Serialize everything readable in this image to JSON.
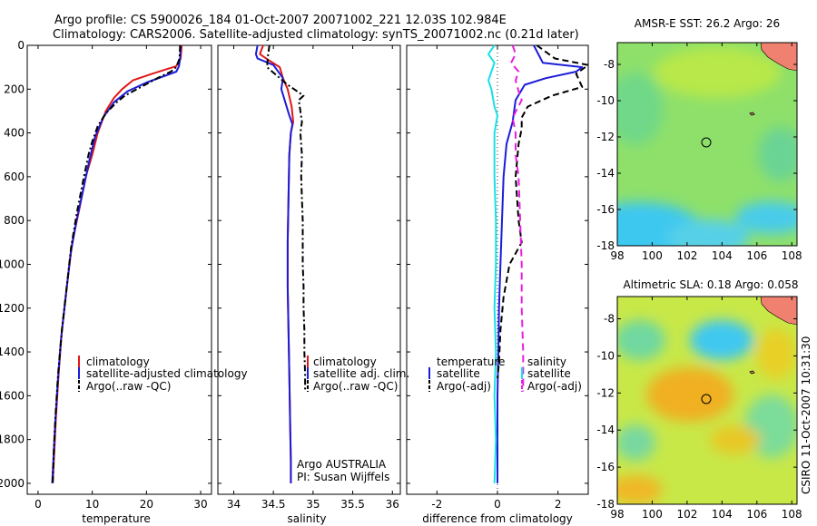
{
  "header": {
    "line1": "Argo profile: CS 5900026_184 01-Oct-2007 20071002_221 12.03S 102.984E",
    "line2": "Climatology: CARS2006. Satellite-adjusted climatology: synTS_20071002.nc (0.21d later)"
  },
  "side_text": "CSIRO 11-Oct-2007 10:31:30",
  "colors": {
    "red": "#e01818",
    "blue": "#1c1cd8",
    "black": "#000000",
    "magenta": "#e81ee0",
    "cyan": "#18e0e8"
  },
  "chart_data": [
    {
      "id": "temperature-panel",
      "type": "line",
      "xlabel": "temperature",
      "ylabel": "",
      "xlim": [
        -2,
        32
      ],
      "ylim": [
        0,
        2050
      ],
      "y_reversed": true,
      "xticks": [
        0,
        10,
        20,
        30
      ],
      "yticks": [
        0,
        200,
        400,
        600,
        800,
        1000,
        1200,
        1400,
        1600,
        1800,
        2000
      ],
      "legend": {
        "position": "lower-center",
        "entries": [
          "climatology",
          "satellite-adjusted climatology",
          "Argo(..raw -QC)"
        ]
      },
      "series": [
        {
          "name": "climatology",
          "color": "red",
          "dash": "",
          "points": [
            [
              26.5,
              0
            ],
            [
              26.3,
              60
            ],
            [
              25.5,
              95
            ],
            [
              21,
              130
            ],
            [
              17.5,
              160
            ],
            [
              15.5,
              200
            ],
            [
              14,
              240
            ],
            [
              12.5,
              300
            ],
            [
              11,
              400
            ],
            [
              10,
              500
            ],
            [
              8.8,
              600
            ],
            [
              7.6,
              750
            ],
            [
              6.3,
              900
            ],
            [
              5.3,
              1100
            ],
            [
              4.4,
              1300
            ],
            [
              3.8,
              1500
            ],
            [
              3.3,
              1700
            ],
            [
              2.9,
              1900
            ],
            [
              2.7,
              2000
            ]
          ]
        },
        {
          "name": "satellite-adjusted climatology",
          "color": "blue",
          "dash": "",
          "points": [
            [
              26.3,
              0
            ],
            [
              26.2,
              60
            ],
            [
              26,
              95
            ],
            [
              25.5,
              120
            ],
            [
              20,
              170
            ],
            [
              16.5,
              210
            ],
            [
              14,
              260
            ],
            [
              12,
              330
            ],
            [
              10.5,
              420
            ],
            [
              9.5,
              520
            ],
            [
              8.4,
              650
            ],
            [
              7.1,
              800
            ],
            [
              6,
              950
            ],
            [
              5.1,
              1150
            ],
            [
              4.2,
              1350
            ],
            [
              3.6,
              1550
            ],
            [
              3.1,
              1750
            ],
            [
              2.8,
              1900
            ],
            [
              2.6,
              2000
            ]
          ]
        },
        {
          "name": "Argo(..raw -QC)",
          "color": "black",
          "dash": "7,3,2,3",
          "points": [
            [
              26.2,
              0
            ],
            [
              26.1,
              60
            ],
            [
              25.5,
              100
            ],
            [
              24.5,
              120
            ],
            [
              22,
              150
            ],
            [
              19,
              190
            ],
            [
              16,
              230
            ],
            [
              14.5,
              260
            ],
            [
              12.5,
              310
            ],
            [
              11,
              370
            ],
            [
              10,
              440
            ],
            [
              9.3,
              500
            ],
            [
              8.3,
              620
            ],
            [
              7.2,
              760
            ],
            [
              6.1,
              920
            ],
            [
              5.3,
              1100
            ],
            [
              4.4,
              1300
            ],
            [
              3.7,
              1500
            ],
            [
              3.2,
              1700
            ],
            [
              2.9,
              1850
            ],
            [
              2.7,
              2000
            ]
          ]
        }
      ]
    },
    {
      "id": "salinity-panel",
      "type": "line",
      "xlabel": "salinity",
      "ylabel": "",
      "xlim": [
        33.8,
        36.1
      ],
      "ylim": [
        0,
        2050
      ],
      "y_reversed": true,
      "xticks": [
        34,
        34.5,
        35,
        35.5,
        36
      ],
      "xtick_labels": [
        "34",
        "34.5",
        "35",
        "35.5",
        "36"
      ],
      "legend": {
        "position": "lower-right",
        "entries": [
          "climatology",
          "satellite adj. clim.",
          "Argo(..raw -QC)"
        ]
      },
      "annotation": [
        "Argo AUSTRALIA",
        "PI: Susan Wijffels"
      ],
      "series": [
        {
          "name": "climatology",
          "color": "red",
          "dash": "",
          "points": [
            [
              34.37,
              0
            ],
            [
              34.33,
              40
            ],
            [
              34.45,
              70
            ],
            [
              34.58,
              100
            ],
            [
              34.62,
              150
            ],
            [
              34.68,
              200
            ],
            [
              34.73,
              280
            ],
            [
              34.75,
              350
            ],
            [
              34.72,
              400
            ],
            [
              34.7,
              500
            ],
            [
              34.69,
              700
            ],
            [
              34.68,
              900
            ],
            [
              34.68,
              1100
            ],
            [
              34.69,
              1300
            ],
            [
              34.7,
              1500
            ],
            [
              34.71,
              1700
            ],
            [
              34.72,
              1900
            ],
            [
              34.72,
              2000
            ]
          ]
        },
        {
          "name": "satellite adj. clim.",
          "color": "blue",
          "dash": "",
          "points": [
            [
              34.3,
              0
            ],
            [
              34.28,
              40
            ],
            [
              34.3,
              60
            ],
            [
              34.5,
              90
            ],
            [
              34.62,
              150
            ],
            [
              34.6,
              200
            ],
            [
              34.65,
              260
            ],
            [
              34.7,
              320
            ],
            [
              34.74,
              360
            ],
            [
              34.72,
              400
            ],
            [
              34.7,
              500
            ],
            [
              34.69,
              700
            ],
            [
              34.68,
              900
            ],
            [
              34.68,
              1100
            ],
            [
              34.69,
              1300
            ],
            [
              34.7,
              1500
            ],
            [
              34.71,
              1700
            ],
            [
              34.72,
              1900
            ],
            [
              34.72,
              2000
            ]
          ]
        },
        {
          "name": "Argo(..raw -QC)",
          "color": "black",
          "dash": "7,3,2,3",
          "points": [
            [
              34.45,
              0
            ],
            [
              34.43,
              50
            ],
            [
              34.42,
              100
            ],
            [
              34.55,
              140
            ],
            [
              34.68,
              180
            ],
            [
              34.8,
              210
            ],
            [
              34.88,
              230
            ],
            [
              34.82,
              250
            ],
            [
              34.84,
              300
            ],
            [
              34.86,
              350
            ],
            [
              34.84,
              400
            ],
            [
              34.86,
              500
            ],
            [
              34.85,
              600
            ],
            [
              34.86,
              700
            ],
            [
              34.87,
              800
            ],
            [
              34.87,
              900
            ],
            [
              34.87,
              1000
            ],
            [
              34.88,
              1100
            ],
            [
              34.88,
              1200
            ],
            [
              34.89,
              1300
            ],
            [
              34.89,
              1400
            ],
            [
              34.9,
              1500
            ],
            [
              34.9,
              1580
            ]
          ]
        }
      ]
    },
    {
      "id": "difference-panel",
      "type": "line",
      "xlabel": "difference from climatology",
      "ylabel": "",
      "xlim": [
        -3,
        3
      ],
      "ylim": [
        0,
        2050
      ],
      "y_reversed": true,
      "xticks": [
        -2,
        0,
        2
      ],
      "legend": {
        "position": "lower-center",
        "columns": [
          {
            "title": "temperature",
            "entries": [
              "satellite",
              "Argo(-adj)"
            ]
          },
          {
            "title": "salinity",
            "entries": [
              "satellite",
              "Argo(-adj)"
            ]
          }
        ]
      },
      "series": [
        {
          "name": "satellite",
          "group": "temperature",
          "color": "blue",
          "dash": "",
          "points": [
            [
              1.2,
              0
            ],
            [
              1.5,
              80
            ],
            [
              2.8,
              100
            ],
            [
              2.6,
              120
            ],
            [
              1.6,
              150
            ],
            [
              0.9,
              180
            ],
            [
              0.6,
              250
            ],
            [
              0.5,
              350
            ],
            [
              0.3,
              450
            ],
            [
              0.2,
              600
            ],
            [
              0.15,
              800
            ],
            [
              0.1,
              1000
            ],
            [
              0.05,
              1200
            ],
            [
              0.03,
              1400
            ],
            [
              0,
              1600
            ],
            [
              0,
              2000
            ]
          ]
        },
        {
          "name": "Argo(-adj)",
          "group": "temperature",
          "color": "black",
          "dash": "7,4",
          "points": [
            [
              1.3,
              0
            ],
            [
              1.9,
              60
            ],
            [
              3.0,
              90
            ],
            [
              2.6,
              130
            ],
            [
              2.8,
              190
            ],
            [
              1.8,
              230
            ],
            [
              1.0,
              280
            ],
            [
              0.8,
              330
            ],
            [
              0.8,
              380
            ],
            [
              0.7,
              450
            ],
            [
              0.6,
              600
            ],
            [
              0.7,
              800
            ],
            [
              0.8,
              900
            ],
            [
              0.4,
              1000
            ],
            [
              0.2,
              1150
            ],
            [
              0.1,
              1300
            ],
            [
              0.05,
              1450
            ],
            [
              0,
              1520
            ]
          ]
        },
        {
          "name": "satellite",
          "group": "salinity",
          "color": "cyan",
          "dash": "",
          "points": [
            [
              -0.1,
              0
            ],
            [
              -0.3,
              40
            ],
            [
              -0.1,
              80
            ],
            [
              -0.2,
              120
            ],
            [
              -0.3,
              160
            ],
            [
              -0.2,
              200
            ],
            [
              -0.1,
              280
            ],
            [
              0,
              320
            ],
            [
              -0.1,
              400
            ],
            [
              -0.1,
              600
            ],
            [
              -0.05,
              800
            ],
            [
              -0.05,
              1000
            ],
            [
              -0.1,
              1200
            ],
            [
              -0.05,
              1400
            ],
            [
              -0.1,
              1600
            ],
            [
              -0.05,
              1800
            ],
            [
              -0.1,
              2000
            ]
          ]
        },
        {
          "name": "Argo(-adj)",
          "group": "salinity",
          "color": "magenta",
          "dash": "8,5",
          "points": [
            [
              0.5,
              0
            ],
            [
              0.6,
              40
            ],
            [
              0.45,
              80
            ],
            [
              0.7,
              120
            ],
            [
              0.6,
              160
            ],
            [
              0.7,
              210
            ],
            [
              0.8,
              250
            ],
            [
              0.5,
              330
            ],
            [
              0.6,
              400
            ],
            [
              0.6,
              500
            ],
            [
              0.7,
              600
            ],
            [
              0.75,
              800
            ],
            [
              0.8,
              1000
            ],
            [
              0.8,
              1200
            ],
            [
              0.85,
              1400
            ],
            [
              0.85,
              1580
            ]
          ]
        }
      ]
    },
    {
      "id": "sst-map",
      "type": "heatmap",
      "title": "AMSR-E SST: 26.2 Argo: 26",
      "xlim": [
        98,
        108.3
      ],
      "ylim": [
        -18,
        -6.8
      ],
      "xticks": [
        98,
        100,
        102,
        104,
        106,
        108
      ],
      "yticks": [
        -8,
        -10,
        -12,
        -14,
        -16,
        -18
      ],
      "argo_position": {
        "lon": 102.984,
        "lat": -12.03
      },
      "palette": {
        "background": "#8ee06a",
        "cool": "#3cc8f0",
        "warm": "#e8e030",
        "land": "#f08070"
      }
    },
    {
      "id": "sla-map",
      "type": "heatmap",
      "title": "Altimetric SLA: 0.18 Argo: 0.058",
      "xlim": [
        98,
        108.3
      ],
      "ylim": [
        -18,
        -6.8
      ],
      "xticks": [
        98,
        100,
        102,
        104,
        106,
        108
      ],
      "yticks": [
        -8,
        -10,
        -12,
        -14,
        -16,
        -18
      ],
      "argo_position": {
        "lon": 102.984,
        "lat": -12.03
      },
      "palette": {
        "background": "#c8e848",
        "cool": "#40c8f0",
        "warm": "#f0b020",
        "land": "#f08070"
      }
    }
  ]
}
